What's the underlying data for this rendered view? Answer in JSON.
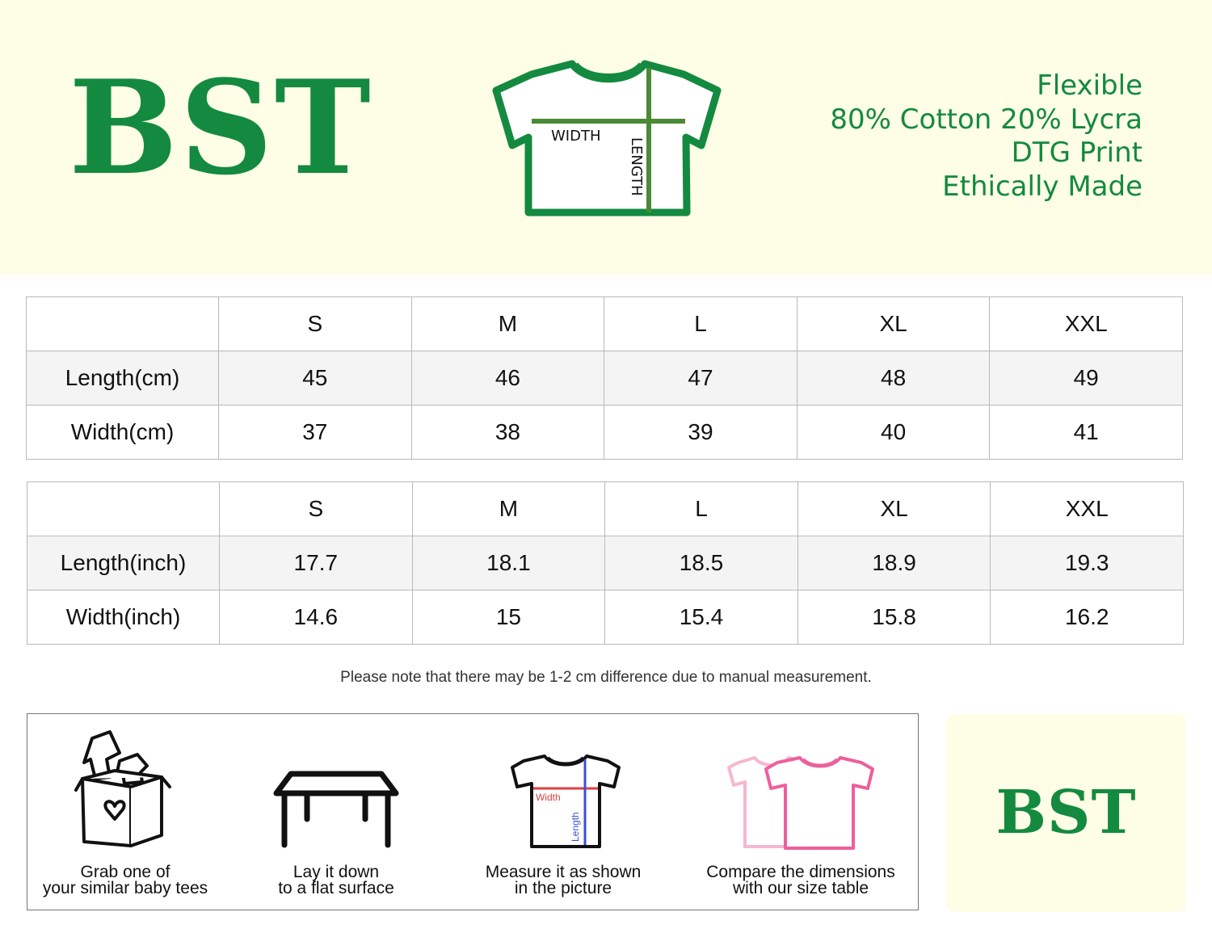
{
  "brand": {
    "logo": "BST",
    "features": [
      "Flexible",
      "80% Cotton 20% Lycra",
      "DTG Print",
      "Ethically Made"
    ]
  },
  "diagram": {
    "width_label": "WIDTH",
    "length_label": "LENGTH"
  },
  "tables": {
    "cm": {
      "sizes": [
        "S",
        "M",
        "L",
        "XL",
        "XXL"
      ],
      "rows": [
        {
          "label": "Length(cm)",
          "values": [
            "45",
            "46",
            "47",
            "48",
            "49"
          ]
        },
        {
          "label": "Width(cm)",
          "values": [
            "37",
            "38",
            "39",
            "40",
            "41"
          ]
        }
      ]
    },
    "inch": {
      "sizes": [
        "S",
        "M",
        "L",
        "XL",
        "XXL"
      ],
      "rows": [
        {
          "label": "Length(inch)",
          "values": [
            "17.7",
            "18.1",
            "18.5",
            "18.9",
            "19.3"
          ]
        },
        {
          "label": "Width(inch)",
          "values": [
            "14.6",
            "15",
            "15.4",
            "15.8",
            "16.2"
          ]
        }
      ]
    }
  },
  "note": "Please note that there may be 1-2 cm difference due to manual measurement.",
  "steps": [
    {
      "icon": "box-of-clothes-icon",
      "line1": "Grab one of",
      "line2": "your similar baby tees"
    },
    {
      "icon": "table-icon",
      "line1": "Lay it down",
      "line2": "to a flat surface"
    },
    {
      "icon": "measure-shirt-icon",
      "line1": "Measure it as shown",
      "line2": "in the picture",
      "width_label": "Width",
      "length_label": "Length"
    },
    {
      "icon": "compare-shirts-icon",
      "line1": "Compare the dimensions",
      "line2": "with our size table"
    }
  ],
  "badge": {
    "logo": "BST"
  },
  "colors": {
    "brand_green": "#138a3f",
    "header_bg": "#fefde6",
    "compare_pink": "#ee5f9c",
    "measure_red": "#e04040",
    "measure_blue": "#3b4fd8"
  }
}
